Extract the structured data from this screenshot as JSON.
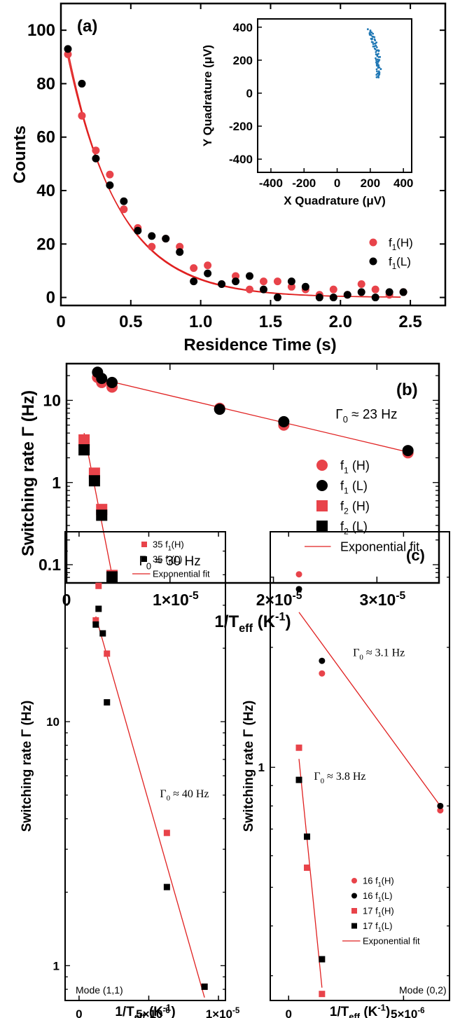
{
  "colors": {
    "red": "#e8434a",
    "black": "#000000",
    "fit": "#e02020",
    "blue": "#1f77b4"
  },
  "chart_data": [
    {
      "id": "a",
      "panel_label": "(a)",
      "type": "scatter",
      "xlabel": "Residence Time (s)",
      "ylabel": "Counts",
      "xlim": [
        0,
        2.75
      ],
      "ylim": [
        -3,
        110
      ],
      "xticks": [
        0,
        0.5,
        1.0,
        1.5,
        2.0,
        2.5
      ],
      "xtick_labels": [
        "0",
        "0.5",
        "1.0",
        "1.5",
        "2.0",
        "2.5"
      ],
      "yticks": [
        0,
        20,
        40,
        60,
        80,
        100
      ],
      "ytick_labels": [
        "0",
        "20",
        "40",
        "60",
        "80",
        "100"
      ],
      "legend_position": "bottom-right",
      "series": [
        {
          "name": "f",
          "sub": "1",
          "suffix": "(H)",
          "marker": "circle",
          "color": "red",
          "x": [
            0.05,
            0.15,
            0.25,
            0.35,
            0.45,
            0.55,
            0.65,
            0.75,
            0.85,
            0.95,
            1.05,
            1.15,
            1.25,
            1.35,
            1.45,
            1.55,
            1.65,
            1.75,
            1.85,
            1.95,
            2.05,
            2.15,
            2.25,
            2.35,
            2.45
          ],
          "y": [
            91,
            68,
            55,
            46,
            33,
            26,
            19,
            22,
            19,
            11,
            12,
            5,
            8,
            3,
            6,
            6,
            4,
            3,
            1,
            3,
            1,
            5,
            3,
            1,
            2
          ]
        },
        {
          "name": "f",
          "sub": "1",
          "suffix": "(L)",
          "marker": "circle",
          "color": "black",
          "x": [
            0.05,
            0.15,
            0.25,
            0.35,
            0.45,
            0.55,
            0.65,
            0.75,
            0.85,
            0.95,
            1.05,
            1.15,
            1.25,
            1.35,
            1.45,
            1.55,
            1.65,
            1.75,
            1.85,
            1.95,
            2.05,
            2.15,
            2.25,
            2.35,
            2.45
          ],
          "y": [
            93,
            80,
            52,
            42,
            36,
            25,
            23,
            22,
            17,
            6,
            9,
            5,
            6,
            8,
            3,
            0,
            6,
            4,
            0,
            0,
            1,
            2,
            0,
            2,
            2
          ]
        }
      ],
      "fit_curves": [
        {
          "A": 103,
          "tau": 0.37,
          "color": "fit"
        },
        {
          "A": 106,
          "tau": 0.36,
          "color": "fit"
        }
      ],
      "inset": {
        "type": "scatter",
        "xlabel": "X Quadrature (μV)",
        "ylabel": "Y Quadrature (μV)",
        "xlim": [
          -480,
          450
        ],
        "ylim": [
          -480,
          450
        ],
        "xticks": [
          -400,
          -200,
          0,
          200,
          400
        ],
        "xtick_labels": [
          "-400",
          "-200",
          "0",
          "200",
          "400"
        ],
        "yticks": [
          -400,
          -200,
          0,
          200,
          400
        ],
        "ytick_labels": [
          "-400",
          "-200",
          "0",
          "200",
          "400"
        ],
        "color": "blue",
        "arc": {
          "x0": 250,
          "y0": 95,
          "x1": 200,
          "y1": 385,
          "points": 70
        }
      }
    },
    {
      "id": "b",
      "panel_label": "(b)",
      "type": "scatter",
      "scale": "log-y",
      "xlabel": "1/T",
      "xlabel_sub": "eff",
      "xlabel_unit": " (K",
      "xlabel_sup": "-1",
      "xlabel_close": ")",
      "ylabel": "Switching rate Γ (Hz)",
      "xlim": [
        0,
        3.6e-05
      ],
      "ylim": [
        0.06,
        28
      ],
      "xticks": [
        0,
        1e-05,
        2e-05,
        3e-05
      ],
      "xtick_labels": [
        "0",
        "1×10",
        "2×10",
        "3×10"
      ],
      "xtick_exp": [
        "",
        "-5",
        "-5",
        "-5"
      ],
      "yticks": [
        0.1,
        1,
        10
      ],
      "ytick_labels": [
        "0.1",
        "1",
        "10"
      ],
      "legend_position": "bottom-right",
      "series": [
        {
          "name": "f",
          "sub": "1",
          "suffix": " (H)",
          "marker": "circle",
          "color": "red",
          "x": [
            3e-06,
            3.4e-06,
            4.4e-06,
            1.48e-05,
            2.1e-05,
            3.3e-05
          ],
          "y": [
            19,
            16.5,
            14.5,
            8.0,
            5.0,
            2.3
          ]
        },
        {
          "name": "f",
          "sub": "1",
          "suffix": " (L)",
          "marker": "circle",
          "color": "black",
          "x": [
            3e-06,
            3.4e-06,
            4.4e-06,
            1.48e-05,
            2.1e-05,
            3.3e-05
          ],
          "y": [
            22,
            18.5,
            16.5,
            7.8,
            5.5,
            2.45
          ]
        },
        {
          "name": "f",
          "sub": "2",
          "suffix": " (H)",
          "marker": "square",
          "color": "red",
          "x": [
            1.7e-06,
            2.7e-06,
            3.4e-06,
            4.4e-06
          ],
          "y": [
            3.3,
            1.3,
            0.47,
            0.074
          ]
        },
        {
          "name": "f",
          "sub": "2",
          "suffix": " (L)",
          "marker": "square",
          "color": "black",
          "x": [
            1.7e-06,
            2.7e-06,
            3.4e-06,
            4.4e-06
          ],
          "y": [
            2.5,
            1.05,
            0.4,
            0.071
          ]
        }
      ],
      "fits": [
        {
          "x": [
            3e-06,
            3.3e-05
          ],
          "y": [
            18.5,
            2.35
          ]
        },
        {
          "x": [
            1.7e-06,
            4.4e-06
          ],
          "y": [
            4.0,
            0.075
          ]
        }
      ],
      "fit_legend": "Exponential fit",
      "annotations": [
        {
          "x": 2.6e-05,
          "y": 6.0,
          "text": "Γ",
          "sub": "0",
          "rest": " ≈ 23 Hz"
        },
        {
          "x": 7e-06,
          "y": 0.098,
          "text": "Γ",
          "sub": "0",
          "rest": " ≈ 30 Hz"
        }
      ]
    },
    {
      "id": "c_left",
      "panel_label": "",
      "type": "scatter",
      "scale": "log-y",
      "xlabel": "1/T",
      "xlabel_sub": "eff",
      "xlabel_unit": " (K",
      "xlabel_sup": "-1",
      "xlabel_close": ")",
      "ylabel": "Switching rate Γ (Hz)",
      "xlim": [
        -1e-06,
        1.05e-05
      ],
      "ylim": [
        0.72,
        60
      ],
      "xticks": [
        0,
        5e-06,
        1e-05
      ],
      "xtick_labels": [
        "0",
        "5×10",
        "1×10"
      ],
      "xtick_exp": [
        "",
        "-6",
        "-5"
      ],
      "yticks": [
        1,
        10
      ],
      "ytick_labels": [
        "1",
        "10"
      ],
      "mode_label": "Mode (1,1)",
      "series": [
        {
          "name": "35 f",
          "sub": "1",
          "suffix": "(H)",
          "marker": "square",
          "color": "red",
          "x": [
            1.2e-06,
            1.4e-06,
            2e-06,
            6.3e-06,
            9e-06
          ],
          "y": [
            26,
            36,
            19,
            3.5,
            0.82
          ]
        },
        {
          "name": "35 f",
          "sub": "1",
          "suffix": "(L)",
          "marker": "square",
          "color": "black",
          "x": [
            1.2e-06,
            1.4e-06,
            1.7e-06,
            2e-06,
            6.3e-06,
            9e-06
          ],
          "y": [
            25,
            29,
            23,
            12,
            2.1,
            0.82
          ]
        }
      ],
      "fits": [
        {
          "x": [
            1.2e-06,
            9e-06
          ],
          "y": [
            27,
            0.74
          ]
        }
      ],
      "fit_legend": "Exponential fit",
      "annotations": [
        {
          "x": 5.8e-06,
          "y": 4.9,
          "text": "Γ",
          "sub": "0",
          "rest": " ≈ 40 Hz"
        }
      ]
    },
    {
      "id": "c_right",
      "panel_label": "(c)",
      "type": "scatter",
      "scale": "log-y",
      "xlabel": "1/T",
      "xlabel_sub": "eff",
      "xlabel_unit": " (K",
      "xlabel_sup": "-1",
      "xlabel_close": ")",
      "ylabel": "Switching rate Γ (Hz)",
      "xlim": [
        -8e-07,
        7e-06
      ],
      "ylim": [
        0.26,
        3.9
      ],
      "xticks": [
        0,
        5e-06
      ],
      "xtick_labels": [
        "0",
        "5×10"
      ],
      "xtick_exp": [
        "",
        "-6"
      ],
      "yticks": [
        1
      ],
      "ytick_labels": [
        "1"
      ],
      "mode_label": "Mode (0,2)",
      "series": [
        {
          "name": "16 f",
          "sub": "1",
          "suffix": "(H)",
          "marker": "circle",
          "color": "red",
          "x": [
            4.5e-07,
            1.45e-06,
            6.6e-06
          ],
          "y": [
            3.05,
            1.72,
            0.78
          ]
        },
        {
          "name": "16 f",
          "sub": "1",
          "suffix": "(L)",
          "marker": "circle",
          "color": "black",
          "x": [
            4.5e-07,
            1.45e-06,
            6.6e-06
          ],
          "y": [
            2.8,
            1.85,
            0.8
          ]
        },
        {
          "name": "17 f",
          "sub": "1",
          "suffix": "(H)",
          "marker": "square",
          "color": "red",
          "x": [
            4.5e-07,
            8e-07,
            1.45e-06
          ],
          "y": [
            1.12,
            0.56,
            0.27
          ]
        },
        {
          "name": "17 f",
          "sub": "1",
          "suffix": "(L)",
          "marker": "square",
          "color": "black",
          "x": [
            4.5e-07,
            8e-07,
            1.45e-06
          ],
          "y": [
            0.93,
            0.67,
            0.33
          ]
        }
      ],
      "fits": [
        {
          "x": [
            4.5e-07,
            6.6e-06
          ],
          "y": [
            2.45,
            0.8
          ]
        },
        {
          "x": [
            4.5e-07,
            1.45e-06
          ],
          "y": [
            1.05,
            0.28
          ]
        }
      ],
      "fit_legend": "Exponential fit",
      "annotations": [
        {
          "x": 2.8e-06,
          "y": 1.9,
          "text": "Γ",
          "sub": "0",
          "rest": " ≈ 3.1 Hz"
        },
        {
          "x": 1.1e-06,
          "y": 0.93,
          "text": "Γ",
          "sub": "0",
          "rest": " ≈ 3.8 Hz"
        }
      ]
    }
  ]
}
